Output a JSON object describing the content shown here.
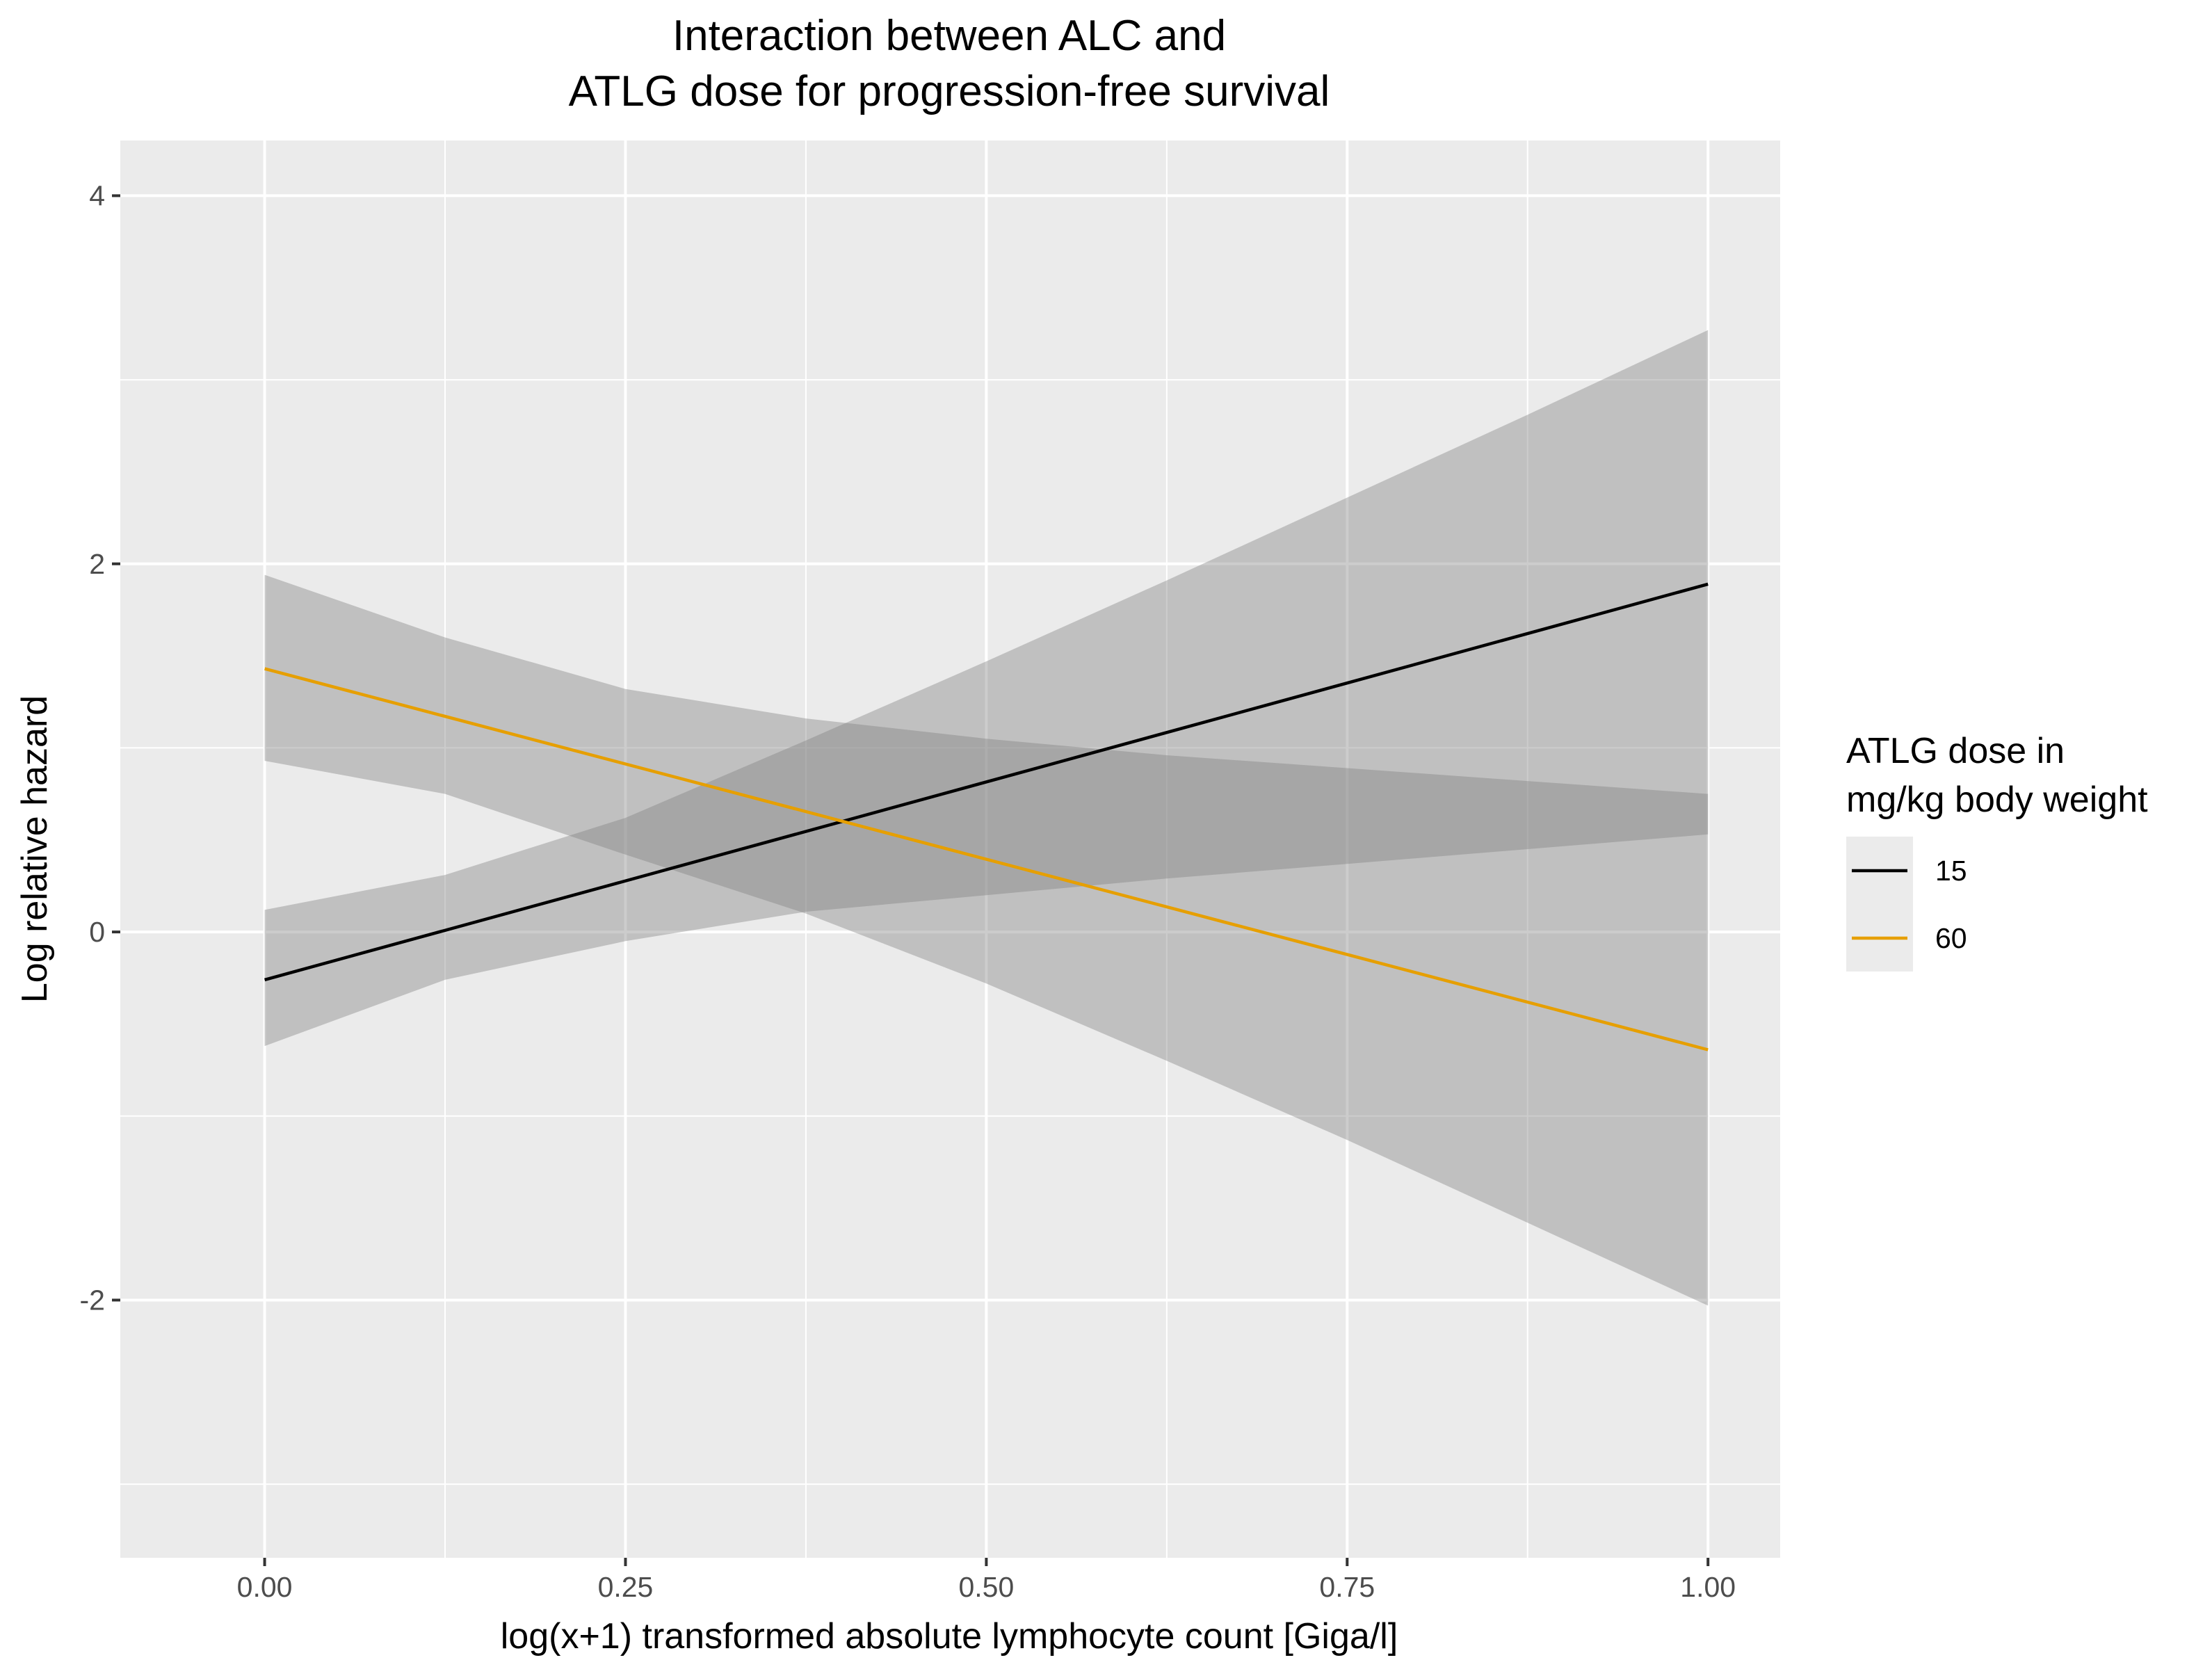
{
  "chart_data": {
    "type": "line",
    "title": [
      "Interaction between ALC and",
      "ATLG dose for progression-free survival"
    ],
    "xlabel": "log(x+1) transformed absolute lymphocyte count [Giga/l]",
    "ylabel": "Log relative hazard",
    "xlim": [
      -0.1,
      1.05
    ],
    "ylim": [
      -3.4,
      4.3
    ],
    "x_ticks": [
      0.0,
      0.25,
      0.5,
      0.75,
      1.0
    ],
    "x_tick_labels": [
      "0.00",
      "0.25",
      "0.50",
      "0.75",
      "1.00"
    ],
    "y_ticks": [
      4,
      2,
      0,
      -2
    ],
    "y_tick_labels": [
      "4",
      "2",
      "0",
      "-2"
    ],
    "x_minor": [
      0.125,
      0.375,
      0.625,
      0.875
    ],
    "y_minor": [
      3,
      1,
      -1,
      -3
    ],
    "grid": true,
    "legend": {
      "title": [
        "ATLG dose in",
        "mg/kg body weight"
      ],
      "position": "right"
    },
    "series": [
      {
        "name": "15",
        "color": "#000000",
        "x": [
          0.0,
          1.0
        ],
        "y": [
          -0.26,
          1.89
        ],
        "band_x": [
          0.0,
          0.125,
          0.25,
          0.375,
          0.5,
          0.625,
          0.75,
          0.875,
          1.0
        ],
        "band_upper": [
          0.12,
          0.31,
          0.62,
          1.04,
          1.47,
          1.91,
          2.36,
          2.81,
          3.27
        ],
        "band_lower": [
          -0.62,
          -0.26,
          -0.05,
          0.11,
          0.2,
          0.29,
          0.37,
          0.45,
          0.53
        ]
      },
      {
        "name": "60",
        "color": "#E69F00",
        "x": [
          0.0,
          1.0
        ],
        "y": [
          1.43,
          -0.64
        ],
        "band_x": [
          0.0,
          0.125,
          0.25,
          0.375,
          0.5,
          0.625,
          0.75,
          0.875,
          1.0
        ],
        "band_upper": [
          1.94,
          1.6,
          1.32,
          1.16,
          1.05,
          0.96,
          0.89,
          0.82,
          0.75
        ],
        "band_lower": [
          0.93,
          0.75,
          0.42,
          0.1,
          -0.28,
          -0.7,
          -1.13,
          -1.58,
          -2.03
        ]
      }
    ]
  }
}
